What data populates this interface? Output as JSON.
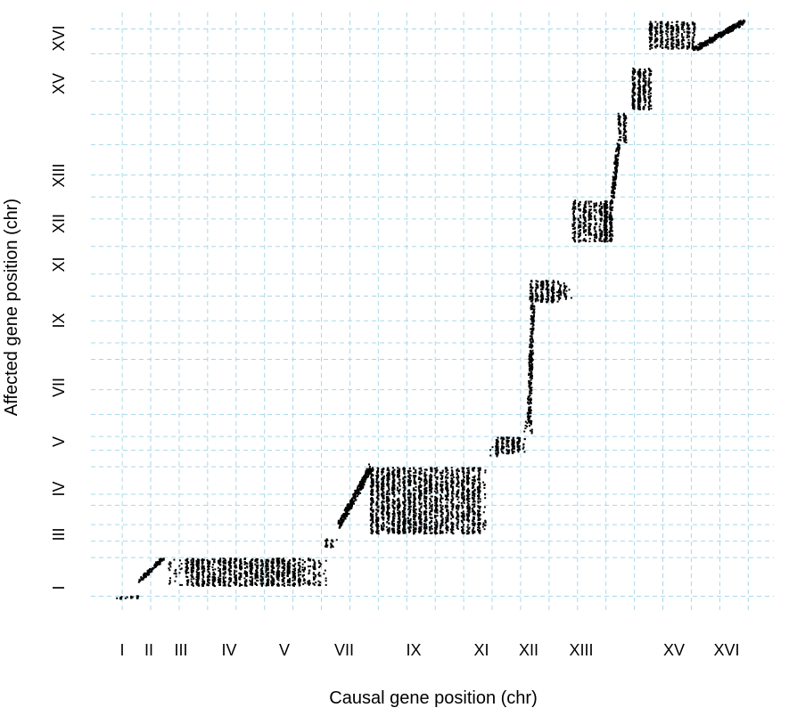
{
  "chart_data": {
    "type": "scatter",
    "xlabel": "Causal gene position (chr)",
    "ylabel": "Affected gene position (chr)",
    "x_ticks": [
      "I",
      "II",
      "III",
      "IV",
      "V",
      "VII",
      "IX",
      "XI",
      "XII",
      "XIII",
      "XV",
      "XVI"
    ],
    "y_ticks": [
      "I",
      "III",
      "IV",
      "V",
      "VII",
      "IX",
      "XI",
      "XII",
      "XIII",
      "XV",
      "XVI"
    ],
    "x_gridlines": [
      1.05,
      1.55,
      2.05,
      2.55,
      3.05,
      3.55,
      4.05,
      4.55,
      5.05,
      5.55,
      6.05,
      6.55,
      7.05,
      7.55,
      8.05,
      8.55,
      9.05,
      9.55,
      10.05,
      10.55,
      11.05,
      11.55,
      12.05
    ],
    "y_gridlines": [
      1.0,
      1.7,
      2.0,
      2.3,
      2.65,
      2.85,
      3.35,
      3.65,
      3.9,
      4.3,
      4.75,
      5.3,
      5.6,
      6.0,
      6.45,
      6.85,
      7.35,
      7.85,
      8.25,
      8.65,
      9.2,
      9.75,
      10.35,
      10.85,
      11.3
    ],
    "xlim": [
      0.5,
      12.5
    ],
    "ylim": [
      0.7,
      11.6
    ],
    "grid": true,
    "clusters": [
      {
        "x": [
          0.9,
          1.35
        ],
        "y": [
          0.96,
          1.02
        ],
        "density": 0.35
      },
      {
        "x": [
          1.35,
          1.75
        ],
        "y": [
          1.3,
          1.7
        ],
        "density": 0.3,
        "shape": "diagonal"
      },
      {
        "x": [
          1.85,
          2.1
        ],
        "y": [
          1.2,
          1.7
        ],
        "density": 0.1
      },
      {
        "x": [
          2.15,
          4.2
        ],
        "y": [
          1.2,
          1.7
        ],
        "density": 0.45
      },
      {
        "x": [
          4.2,
          4.6
        ],
        "y": [
          1.2,
          1.7
        ],
        "density": 0.2
      },
      {
        "x": [
          4.6,
          4.8
        ],
        "y": [
          1.9,
          2.05
        ],
        "density": 0.4
      },
      {
        "x": [
          4.85,
          5.4
        ],
        "y": [
          2.3,
          3.35
        ],
        "density": 0.25,
        "shape": "diagonal"
      },
      {
        "x": [
          5.4,
          7.4
        ],
        "y": [
          2.15,
          3.35
        ],
        "density": 0.4
      },
      {
        "x": [
          7.5,
          7.6
        ],
        "y": [
          3.55,
          3.75
        ],
        "density": 0.4
      },
      {
        "x": [
          7.6,
          8.1
        ],
        "y": [
          3.6,
          3.9
        ],
        "density": 0.5
      },
      {
        "x": [
          8.1,
          8.15
        ],
        "y": [
          3.95,
          4.2
        ],
        "density": 0.6
      },
      {
        "x": [
          8.18,
          8.25
        ],
        "y": [
          4.2,
          6.3
        ],
        "density": 0.8,
        "shape": "diagonal"
      },
      {
        "x": [
          8.2,
          8.7
        ],
        "y": [
          6.35,
          6.75
        ],
        "density": 0.45
      },
      {
        "x": [
          8.7,
          8.9
        ],
        "y": [
          6.4,
          6.7
        ],
        "density": 0.35
      },
      {
        "x": [
          8.95,
          9.65
        ],
        "y": [
          7.45,
          8.2
        ],
        "density": 0.35
      },
      {
        "x": [
          9.5,
          9.65
        ],
        "y": [
          7.45,
          8.2
        ],
        "density": 0.6
      },
      {
        "x": [
          9.65,
          9.75
        ],
        "y": [
          8.25,
          9.2
        ],
        "density": 0.7,
        "shape": "diagonal"
      },
      {
        "x": [
          9.75,
          9.85
        ],
        "y": [
          9.25,
          9.8
        ],
        "density": 0.7
      },
      {
        "x": [
          10.0,
          10.35
        ],
        "y": [
          9.85,
          10.6
        ],
        "density": 0.5
      },
      {
        "x": [
          10.3,
          11.15
        ],
        "y": [
          10.95,
          11.45
        ],
        "density": 0.4
      },
      {
        "x": [
          11.1,
          11.95
        ],
        "y": [
          10.95,
          11.45
        ],
        "density": 0.45,
        "shape": "diagonal"
      }
    ]
  }
}
